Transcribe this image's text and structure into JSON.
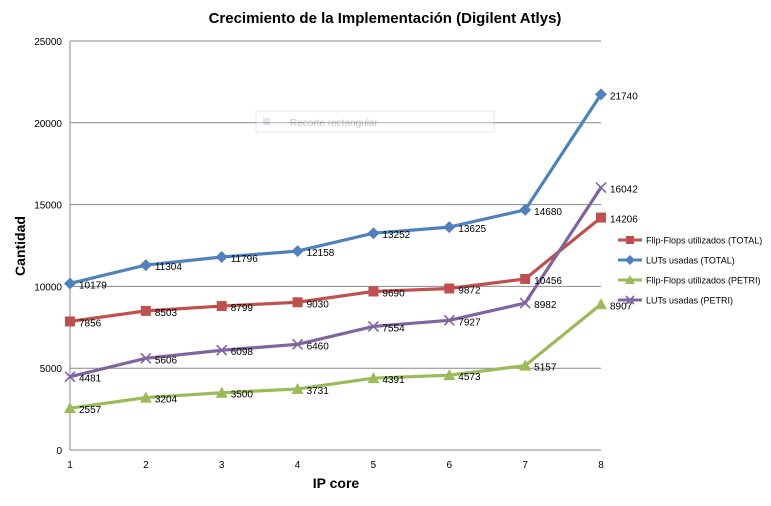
{
  "chart_data": {
    "type": "line",
    "title": "Crecimiento de la Implementación (Digilent Atlys)",
    "xlabel": "IP core",
    "ylabel": "Cantidad",
    "x": [
      1,
      2,
      3,
      4,
      5,
      6,
      7,
      8
    ],
    "ylim": [
      0,
      25000
    ],
    "yticks": [
      0,
      5000,
      10000,
      15000,
      20000,
      25000
    ],
    "grid": "horizontal",
    "legend_position": "right",
    "series": [
      {
        "name": "Flip-Flops utilizados (TOTAL)",
        "color": "#c0504d",
        "marker": "square",
        "values": [
          7856,
          8503,
          8799,
          9030,
          9690,
          9872,
          10456,
          14206
        ]
      },
      {
        "name": "LUTs usadas (TOTAL)",
        "color": "#4f81bd",
        "marker": "diamond",
        "values": [
          10179,
          11304,
          11796,
          12158,
          13252,
          13625,
          14680,
          21740
        ]
      },
      {
        "name": "Flip-Flops utilizados (PETRI)",
        "color": "#9bbb59",
        "marker": "triangle",
        "values": [
          2557,
          3204,
          3500,
          3731,
          4391,
          4573,
          5157,
          8907
        ]
      },
      {
        "name": "LUTs usadas (PETRI)",
        "color": "#8064a2",
        "marker": "x",
        "values": [
          4481,
          5606,
          6098,
          6460,
          7554,
          7927,
          8982,
          16042
        ]
      }
    ],
    "overlay_label": "Recorte rectangular"
  }
}
